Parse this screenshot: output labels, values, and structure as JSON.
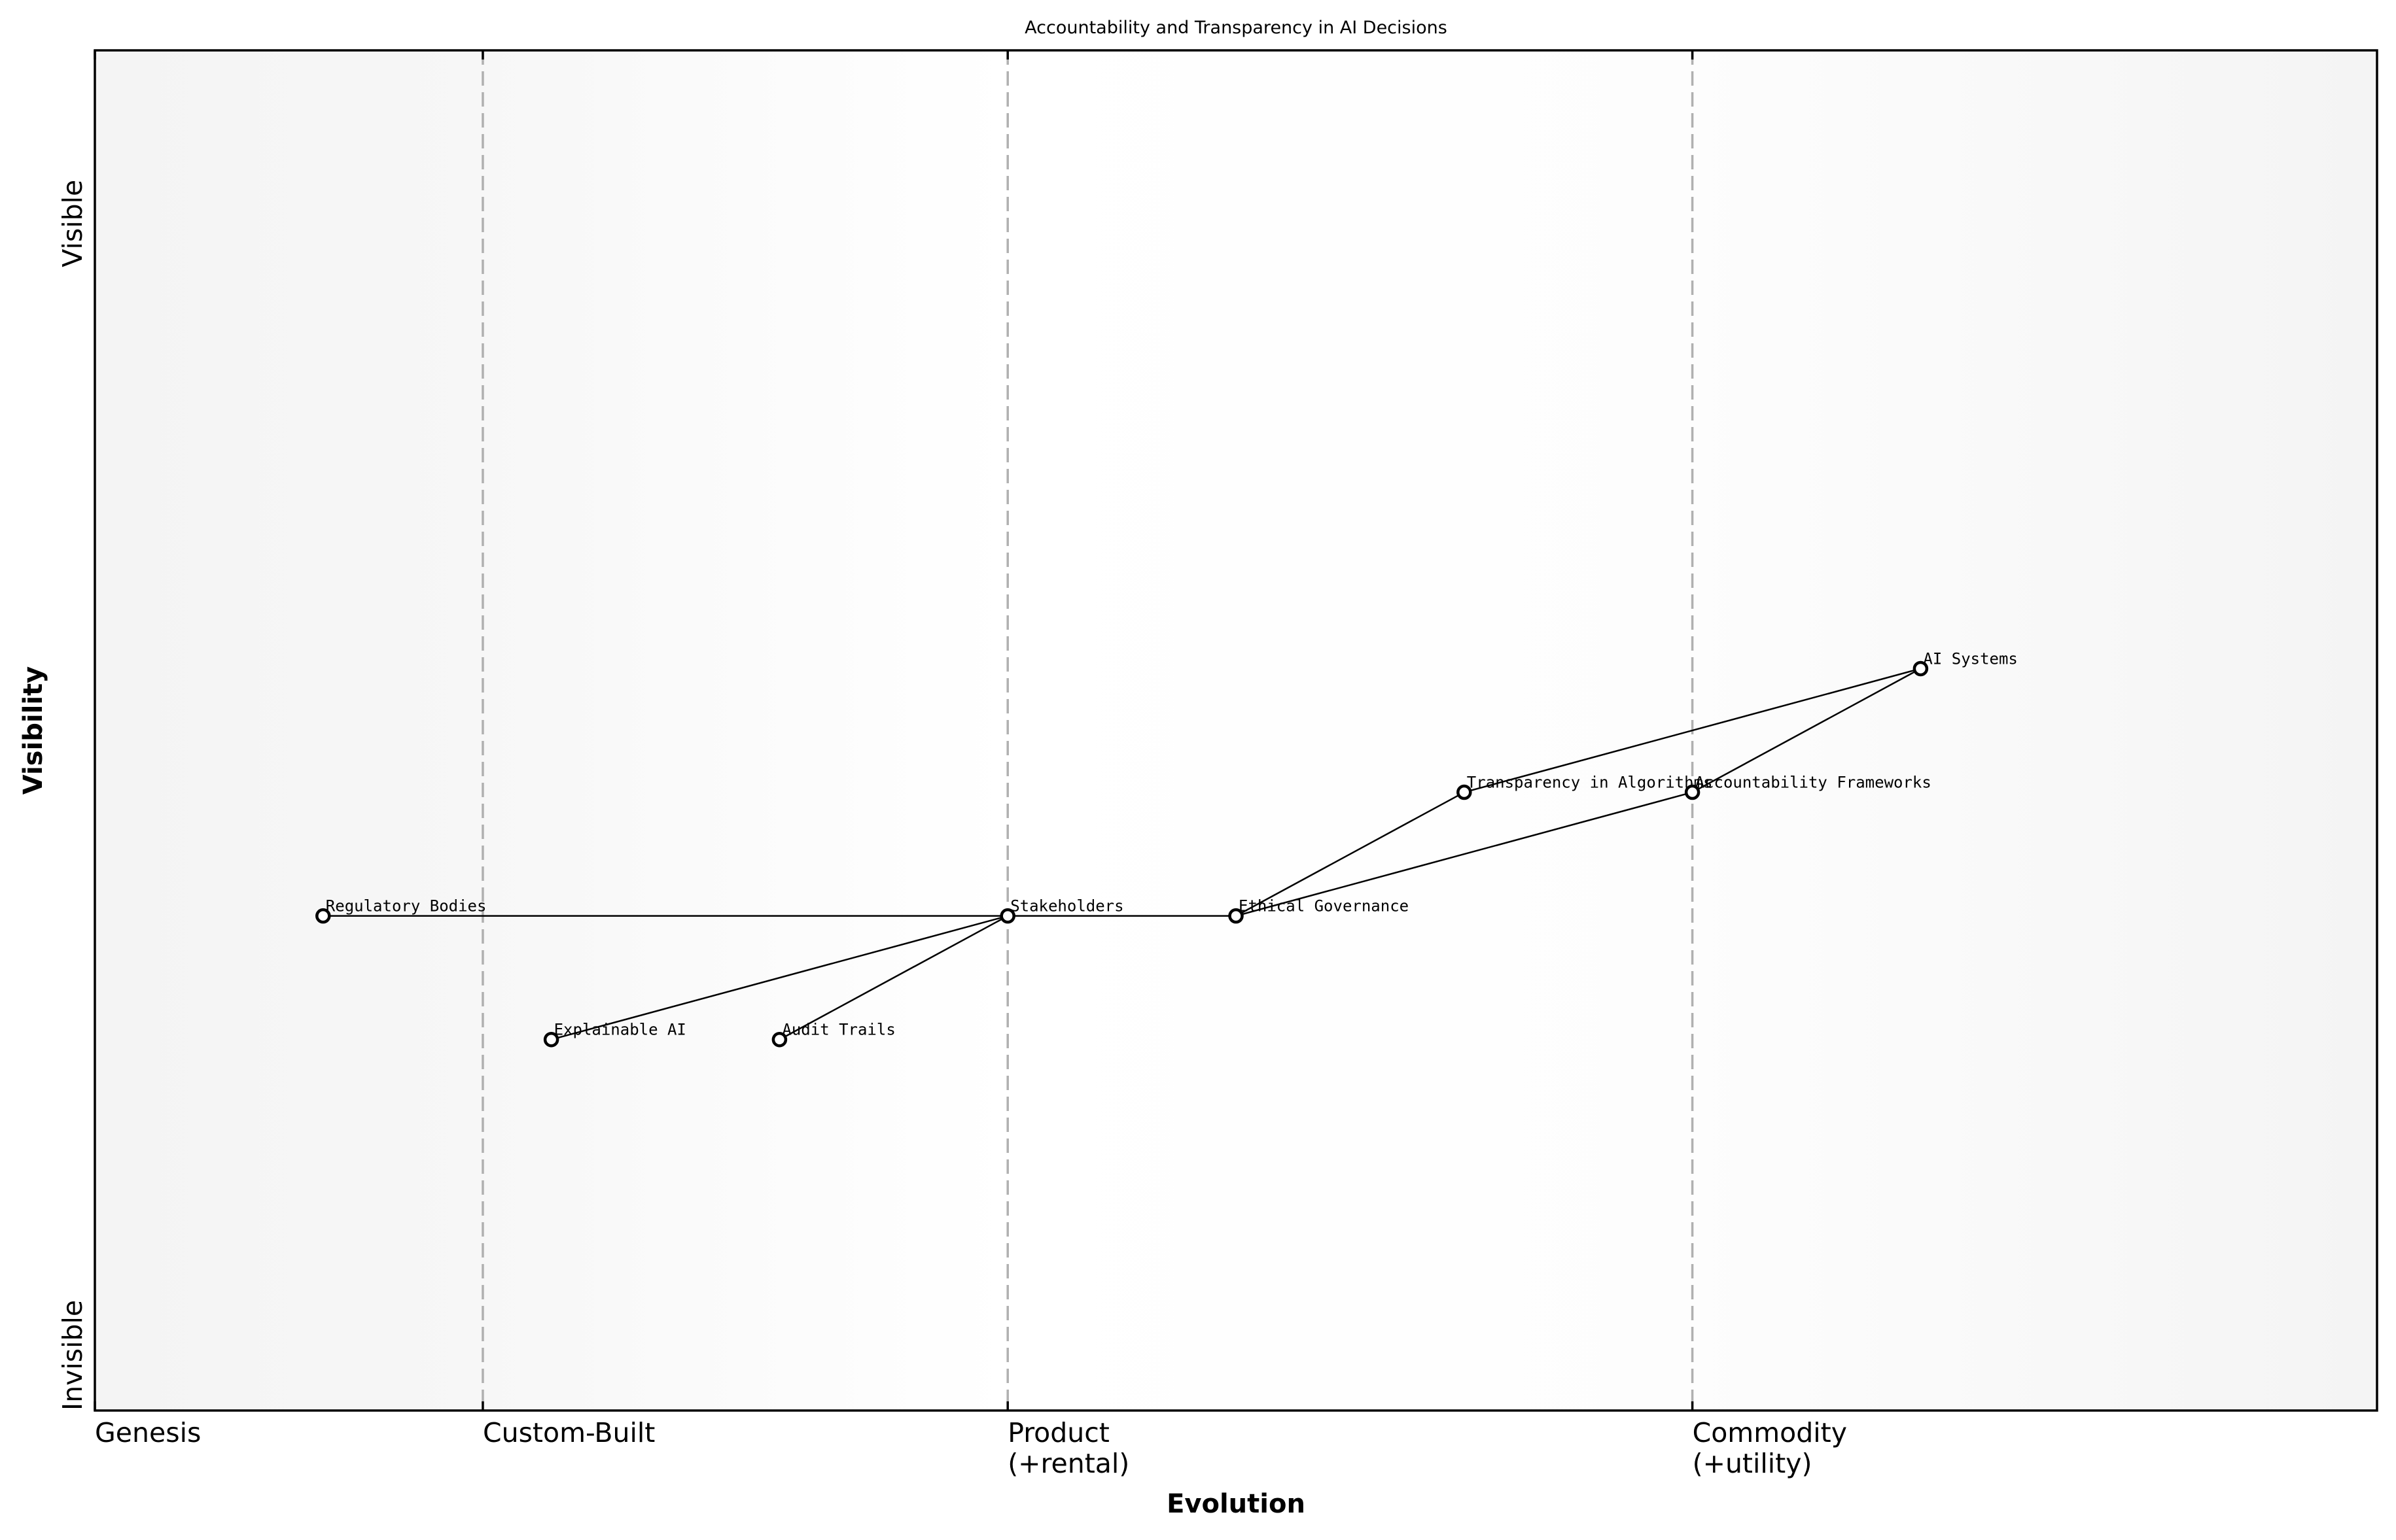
{
  "chart_data": {
    "type": "scatter",
    "subtype": "wardley-map",
    "title": "Accountability and Transparency in AI Decisions",
    "xlabel": "Evolution",
    "ylabel": "Visibility",
    "xlim": [
      0,
      1
    ],
    "ylim": [
      0,
      1.1
    ],
    "grid": false,
    "legend": null,
    "x_ticks": [
      {
        "value": 0.0,
        "label": "Genesis"
      },
      {
        "value": 0.17,
        "label": "Custom-Built"
      },
      {
        "value": 0.4,
        "label": "Product\n(+rental)"
      },
      {
        "value": 0.7,
        "label": "Commodity\n(+utility)"
      }
    ],
    "y_ticks": [
      {
        "value": 0.0,
        "label": "Invisible"
      },
      {
        "value": 0.96,
        "label": "Visible"
      }
    ],
    "stage_dividers": [
      0.17,
      0.4,
      0.7
    ],
    "background_gradient": {
      "direction": "horizontal",
      "stops": [
        {
          "offset": 0.0,
          "color": "#f4f4f4"
        },
        {
          "offset": 0.17,
          "color": "#f7f7f7"
        },
        {
          "offset": 0.4,
          "color": "#ffffff"
        },
        {
          "offset": 0.7,
          "color": "#fdfdfd"
        },
        {
          "offset": 1.0,
          "color": "#f4f4f4"
        }
      ]
    },
    "nodes": [
      {
        "id": "regulatory",
        "label": "Regulatory Bodies",
        "x": 0.1,
        "y": 0.4
      },
      {
        "id": "explainable",
        "label": "Explainable AI",
        "x": 0.2,
        "y": 0.3
      },
      {
        "id": "audit",
        "label": "Audit Trails",
        "x": 0.3,
        "y": 0.3
      },
      {
        "id": "stakeholders",
        "label": "Stakeholders",
        "x": 0.4,
        "y": 0.4
      },
      {
        "id": "ethical",
        "label": "Ethical Governance",
        "x": 0.5,
        "y": 0.4
      },
      {
        "id": "transparency",
        "label": "Transparency in Algorithms",
        "x": 0.6,
        "y": 0.5
      },
      {
        "id": "accountability",
        "label": "Accountability Frameworks",
        "x": 0.7,
        "y": 0.5
      },
      {
        "id": "aisystems",
        "label": "AI Systems",
        "x": 0.8,
        "y": 0.6
      }
    ],
    "edges": [
      [
        "regulatory",
        "stakeholders"
      ],
      [
        "explainable",
        "stakeholders"
      ],
      [
        "audit",
        "stakeholders"
      ],
      [
        "stakeholders",
        "ethical"
      ],
      [
        "ethical",
        "transparency"
      ],
      [
        "ethical",
        "accountability"
      ],
      [
        "transparency",
        "aisystems"
      ],
      [
        "accountability",
        "aisystems"
      ]
    ]
  },
  "colors": {
    "frame": "#000000",
    "stage_line": "#b0b0b0",
    "node_fill": "#ffffff",
    "node_stroke": "#000000",
    "edge": "#000000"
  }
}
